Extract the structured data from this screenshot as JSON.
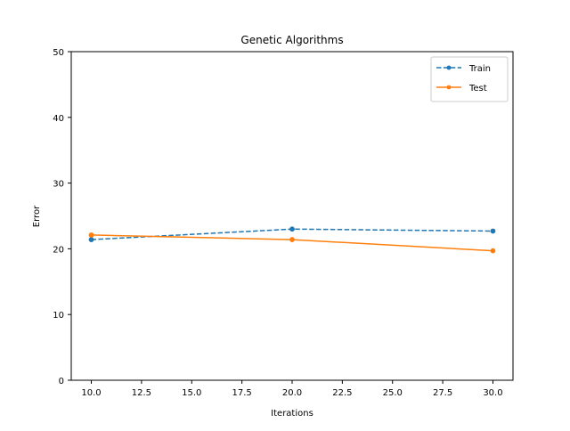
{
  "chart_data": {
    "type": "line",
    "title": "Genetic Algorithms",
    "xlabel": "Iterations",
    "ylabel": "Error",
    "x": [
      10,
      20,
      30
    ],
    "xlim": [
      9,
      31
    ],
    "ylim": [
      0,
      50
    ],
    "xticks": [
      10,
      12.5,
      15,
      17.5,
      20,
      22.5,
      25,
      27.5,
      30
    ],
    "yticks": [
      0,
      10,
      20,
      30,
      40,
      50
    ],
    "xtick_labels": [
      "10.0",
      "12.5",
      "15.0",
      "17.5",
      "20.0",
      "22.5",
      "25.0",
      "27.5",
      "30.0"
    ],
    "ytick_labels": [
      "0",
      "10",
      "20",
      "30",
      "40",
      "50"
    ],
    "grid": false,
    "legend_position": "top-right",
    "series": [
      {
        "name": "Train",
        "values": [
          21.4,
          23.0,
          22.7
        ],
        "color": "#1f77b4",
        "line_style": "dashed",
        "marker": "circle"
      },
      {
        "name": "Test",
        "values": [
          22.1,
          21.4,
          19.7
        ],
        "color": "#ff7f0e",
        "line_style": "solid",
        "marker": "circle"
      }
    ]
  }
}
